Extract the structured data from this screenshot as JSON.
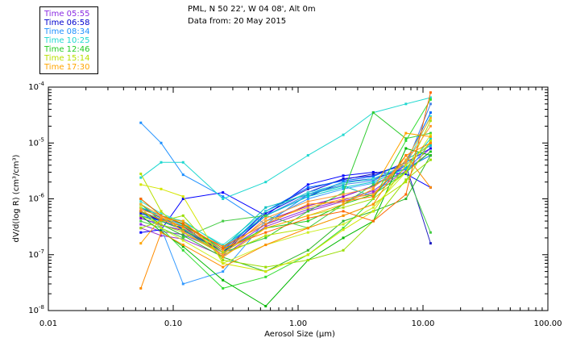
{
  "header": {
    "location": "PML, N 50 22', W 04 08', Alt 0m",
    "date": "Data from: 20 May 2015"
  },
  "legend": [
    {
      "label": "Time 05:55",
      "color": "#8a2be2"
    },
    {
      "label": "Time 06:58",
      "color": "#0000cd"
    },
    {
      "label": "Time 08:34",
      "color": "#1e90ff"
    },
    {
      "label": "Time 10:25",
      "color": "#20d8d0"
    },
    {
      "label": "Time 12:46",
      "color": "#22cc22"
    },
    {
      "label": "Time 15:14",
      "color": "#b8e000"
    },
    {
      "label": "Time 17:30",
      "color": "#ffa500"
    }
  ],
  "chart_data": {
    "type": "line",
    "xscale": "log",
    "yscale": "log",
    "xlabel": "Aerosol Size (μm)",
    "ylabel": "dV/d(log R) (cm³/cm³)",
    "xlim": [
      0.01,
      100
    ],
    "ylim": [
      1e-08,
      0.0001
    ],
    "xticks": [
      {
        "value": 0.01,
        "label": "0.01"
      },
      {
        "value": 0.1,
        "label": "0.10"
      },
      {
        "value": 1,
        "label": "1.00"
      },
      {
        "value": 10,
        "label": "10.00"
      },
      {
        "value": 100,
        "label": "100.00"
      }
    ],
    "yticks": [
      {
        "value": 1e-08,
        "base": "10",
        "exp": "-8"
      },
      {
        "value": 1e-07,
        "base": "10",
        "exp": "-7"
      },
      {
        "value": 1e-06,
        "base": "10",
        "exp": "-6"
      },
      {
        "value": 1e-05,
        "base": "10",
        "exp": "-5"
      },
      {
        "value": 0.0001,
        "base": "10",
        "exp": "-4"
      }
    ],
    "x": [
      0.055,
      0.08,
      0.12,
      0.25,
      0.55,
      1.2,
      2.3,
      4.0,
      7.3,
      11.5
    ],
    "series": [
      {
        "name": "Time 05:55",
        "color": "#8a2be2",
        "values": [
          3.5e-07,
          2.6e-07,
          2.3e-07,
          1.1e-07,
          3.5e-07,
          6.5e-07,
          9.5e-07,
          1.4e-06,
          3.5e-06,
          8e-06
        ]
      },
      {
        "name": "Time 05:55",
        "color": "#7a00cc",
        "values": [
          4.5e-07,
          3.4e-07,
          2.7e-07,
          1.2e-07,
          4e-07,
          7.5e-07,
          1.1e-06,
          1.7e-06,
          4e-06,
          1e-05
        ]
      },
      {
        "name": "Time 05:55",
        "color": "#9932cc",
        "values": [
          3e-07,
          2.2e-07,
          1.9e-07,
          9.5e-08,
          3.2e-07,
          6e-07,
          9e-07,
          1.3e-06,
          3.2e-06,
          7e-06
        ]
      },
      {
        "name": "Time 06:58",
        "color": "#0000cd",
        "values": [
          6e-07,
          4e-07,
          3e-07,
          1.1e-07,
          5e-07,
          1.1e-06,
          2e-06,
          2.3e-06,
          3.5e-06,
          6e-06
        ]
      },
      {
        "name": "Time 06:58",
        "color": "#0000ff",
        "values": [
          2.5e-07,
          2.8e-07,
          1e-06,
          1.3e-06,
          5e-07,
          1.8e-06,
          2.6e-06,
          3e-06,
          2.8e-06,
          1.6e-06
        ]
      },
      {
        "name": "Time 06:58",
        "color": "#2020c0",
        "values": [
          7e-07,
          4.5e-07,
          3.2e-07,
          1.1e-07,
          6e-07,
          1.5e-06,
          2.2e-06,
          2.8e-06,
          4e-06,
          1.6e-07
        ]
      },
      {
        "name": "Time 06:58",
        "color": "#1010e0",
        "values": [
          5.5e-07,
          4e-07,
          2.8e-07,
          1e-07,
          5.5e-07,
          1.3e-06,
          2.3e-06,
          2.6e-06,
          4.5e-06,
          8e-06
        ]
      },
      {
        "name": "Time 08:34",
        "color": "#1e90ff",
        "values": [
          2.3e-05,
          1e-05,
          2.7e-06,
          1.1e-06,
          3.5e-07,
          1.2e-06,
          2e-06,
          2.2e-06,
          3.5e-06,
          6e-06
        ]
      },
      {
        "name": "Time 08:34",
        "color": "#3399ff",
        "values": [
          6e-07,
          3e-07,
          3e-08,
          5e-08,
          4e-07,
          1e-06,
          1.5e-06,
          1.9e-06,
          3e-06,
          1e-05
        ]
      },
      {
        "name": "Time 08:34",
        "color": "#0066ff",
        "values": [
          5e-07,
          4e-07,
          2.9e-07,
          1.2e-07,
          6e-07,
          1.6e-06,
          2.1e-06,
          2.5e-06,
          4.5e-06,
          3.5e-05
        ]
      },
      {
        "name": "Time 08:34",
        "color": "#4682e6",
        "values": [
          8e-07,
          4.5e-07,
          3.5e-07,
          1.3e-07,
          5e-07,
          1.2e-06,
          1.8e-06,
          2.1e-06,
          4e-06,
          5e-05
        ]
      },
      {
        "name": "Time 10:25",
        "color": "#20d8d0",
        "values": [
          2.4e-06,
          4.5e-06,
          4.5e-06,
          1e-06,
          2e-06,
          6e-06,
          1.4e-05,
          3.5e-05,
          5e-05,
          6.5e-05
        ]
      },
      {
        "name": "Time 10:25",
        "color": "#00cccc",
        "values": [
          7e-07,
          5e-07,
          4e-07,
          1.4e-07,
          5e-07,
          1.1e-06,
          1.6e-06,
          2e-06,
          3.5e-06,
          1.2e-05
        ]
      },
      {
        "name": "Time 10:25",
        "color": "#40e0d0",
        "values": [
          9e-07,
          5.5e-07,
          3.8e-07,
          1.5e-07,
          6e-07,
          1.3e-06,
          1.9e-06,
          2.3e-06,
          4e-06,
          3e-05
        ]
      },
      {
        "name": "Time 10:25",
        "color": "#00bfbf",
        "values": [
          6e-07,
          4.3e-07,
          3.3e-07,
          1.3e-07,
          7e-07,
          1.2e-06,
          1.7e-06,
          1.1e-06,
          5e-06,
          9e-06
        ]
      },
      {
        "name": "Time 12:46",
        "color": "#22cc22",
        "values": [
          1e-06,
          5e-07,
          3.5e-07,
          1.2e-07,
          3e-07,
          4e-07,
          8e-07,
          1.2e-06,
          3e-06,
          7e-06
        ]
      },
      {
        "name": "Time 12:46",
        "color": "#33dd33",
        "values": [
          7e-07,
          3e-07,
          1.2e-07,
          2.5e-08,
          4e-08,
          1e-07,
          3e-07,
          1e-06,
          1.1e-05,
          6e-05
        ]
      },
      {
        "name": "Time 12:46",
        "color": "#00b800",
        "values": [
          5e-07,
          2.6e-07,
          1.4e-07,
          3.5e-08,
          1.2e-08,
          8e-08,
          2e-07,
          4e-07,
          8e-06,
          6e-06
        ]
      },
      {
        "name": "Time 12:46",
        "color": "#44cc44",
        "values": [
          4e-07,
          3e-07,
          2e-07,
          4e-07,
          5e-07,
          3e-07,
          8e-07,
          1.8e-06,
          3e-06,
          2.5e-07
        ]
      },
      {
        "name": "Time 12:46",
        "color": "#2eb82e",
        "values": [
          6e-07,
          3.5e-07,
          2.2e-07,
          9e-08,
          5e-08,
          1.2e-07,
          4e-07,
          6e-07,
          1e-06,
          6e-06
        ]
      },
      {
        "name": "Time 12:46",
        "color": "#33cc33",
        "values": [
          8e-07,
          4e-07,
          2.8e-07,
          1.1e-07,
          2e-07,
          6e-07,
          1.3e-06,
          3.5e-05,
          1.2e-05,
          1.5e-05
        ]
      },
      {
        "name": "Time 15:14",
        "color": "#b8e000",
        "values": [
          2.8e-06,
          6e-07,
          2.5e-07,
          1e-07,
          2.2e-07,
          3e-07,
          5e-07,
          8e-07,
          2e-06,
          1.1e-05
        ]
      },
      {
        "name": "Time 15:14",
        "color": "#ccee22",
        "values": [
          7e-07,
          3e-07,
          1.8e-07,
          7e-08,
          1.5e-07,
          2.5e-07,
          3.5e-07,
          7e-07,
          3e-06,
          1.4e-05
        ]
      },
      {
        "name": "Time 15:14",
        "color": "#99dd00",
        "values": [
          3e-07,
          4e-07,
          5e-07,
          8e-08,
          6e-08,
          8e-08,
          1.2e-07,
          4e-07,
          2.2e-06,
          5e-06
        ]
      },
      {
        "name": "Time 15:14",
        "color": "#d4e600",
        "values": [
          1.8e-06,
          1.5e-06,
          1.1e-06,
          7e-08,
          5e-08,
          1e-07,
          2.8e-07,
          6e-07,
          4e-06,
          1e-05
        ]
      },
      {
        "name": "Time 15:14",
        "color": "#aadd11",
        "values": [
          5e-07,
          3.5e-07,
          2.5e-07,
          1.1e-07,
          3e-07,
          5e-07,
          7e-07,
          1e-06,
          3e-06,
          2.5e-05
        ]
      },
      {
        "name": "Time 17:30",
        "color": "#ffa500",
        "values": [
          1.6e-07,
          4.5e-07,
          4e-07,
          9e-08,
          3e-07,
          5e-07,
          8e-07,
          1.5e-06,
          1.5e-05,
          1.3e-05
        ]
      },
      {
        "name": "Time 17:30",
        "color": "#ff8c00",
        "values": [
          2.5e-08,
          2.5e-07,
          1.5e-07,
          6e-08,
          1.5e-07,
          3e-07,
          5e-07,
          8e-07,
          6e-06,
          1.6e-06
        ]
      },
      {
        "name": "Time 17:30",
        "color": "#ffb020",
        "values": [
          8e-07,
          5e-07,
          3e-07,
          1.2e-07,
          4e-07,
          7e-07,
          1e-06,
          1.2e-06,
          5e-06,
          2.8e-05
        ]
      },
      {
        "name": "Time 17:30",
        "color": "#ff7f00",
        "values": [
          6e-07,
          4.2e-07,
          3.2e-07,
          1.4e-07,
          3.5e-07,
          8e-07,
          9e-07,
          1.1e-06,
          6e-06,
          1e-05
        ]
      },
      {
        "name": "Time 17:30",
        "color": "#ff6600",
        "values": [
          1e-06,
          5e-07,
          3.6e-07,
          1.3e-07,
          2.5e-07,
          4.5e-07,
          6e-07,
          4e-07,
          1.2e-06,
          8e-05
        ]
      },
      {
        "name": "Time 17:30",
        "color": "#ff9933",
        "values": [
          6.5e-07,
          4.8e-07,
          2.6e-07,
          1e-07,
          4.5e-07,
          9e-07,
          1.2e-06,
          1.6e-06,
          4.5e-06,
          2e-05
        ]
      }
    ]
  }
}
